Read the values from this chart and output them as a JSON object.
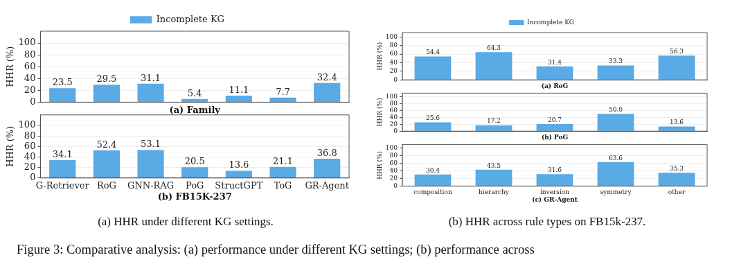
{
  "chart_data": [
    {
      "type": "bar",
      "xlabel": "(a) Family",
      "ylabel": "HHR (%)",
      "categories": [
        null,
        null,
        null,
        null,
        null,
        null,
        null
      ],
      "series": [
        {
          "name": "Incomplete KG",
          "color": "#5aaae6",
          "values": [
            23.5,
            29.5,
            31.1,
            5.4,
            11.1,
            7.7,
            32.4
          ],
          "value_labels": [
            "23.5",
            "29.5",
            "31.1",
            "5.4",
            "11.1",
            "7.7",
            "32.4"
          ]
        }
      ],
      "ylim": [
        0,
        120
      ],
      "yticks": [
        0,
        20,
        40,
        60,
        80,
        100
      ],
      "grid": "y",
      "legend": "top",
      "tick_labels": "y"
    },
    {
      "type": "bar",
      "xlabel": "(b) FB15K-237",
      "ylabel": "HHR (%)",
      "categories": [
        "G-Retriever",
        "RoG",
        "GNN-RAG",
        "PoG",
        "StructGPT",
        "ToG",
        "GR-Agent"
      ],
      "series": [
        {
          "color": "#5aaae6",
          "values": [
            34.1,
            52.4,
            53.1,
            20.5,
            13.6,
            21.1,
            36.8
          ],
          "value_labels": [
            "34.1",
            "52.4",
            "53.1",
            "20.5",
            "13.6",
            "21.1",
            "36.8"
          ]
        }
      ],
      "ylim": [
        0,
        120
      ],
      "yticks": [
        0,
        20,
        40,
        60,
        80,
        100
      ],
      "grid": "y",
      "annotations": [
        "(a) HHR under different KG settings."
      ]
    },
    {
      "type": "bar",
      "xlabel": "(a) RoG",
      "ylabel": "HHR (%)",
      "categories": [
        null,
        null,
        null,
        null,
        null
      ],
      "series": [
        {
          "name": "Incomplete KG",
          "color": "#5aaae6",
          "values": [
            54.4,
            64.3,
            31.4,
            33.3,
            56.3
          ],
          "value_labels": [
            "54.4",
            "64.3",
            "31.4",
            "33.3",
            "56.3"
          ]
        }
      ],
      "ylim": [
        0,
        110
      ],
      "yticks": [
        0,
        20,
        40,
        60,
        80,
        100
      ],
      "grid": "y",
      "legend": "top",
      "tick_labels": "y"
    },
    {
      "type": "bar",
      "xlabel": "(b) PoG",
      "ylabel": "HHR (%)",
      "categories": [
        null,
        null,
        null,
        null,
        null
      ],
      "series": [
        {
          "color": "#5aaae6",
          "values": [
            25.6,
            17.2,
            20.7,
            50,
            13.6
          ],
          "value_labels": [
            "25.6",
            "17.2",
            "20.7",
            "50.0",
            "13.6"
          ]
        }
      ],
      "ylim": [
        0,
        110
      ],
      "yticks": [
        0,
        20,
        40,
        60,
        80,
        100
      ],
      "grid": "y",
      "tick_labels": "y"
    },
    {
      "type": "bar",
      "xlabel": "(c) GR-Agent",
      "ylabel": "HHR (%)",
      "categories": [
        "composition",
        "hierarchy",
        "inversion",
        "symmetry",
        "other"
      ],
      "series": [
        {
          "color": "#5aaae6",
          "values": [
            30.4,
            43.5,
            31.6,
            63.6,
            35.3
          ],
          "value_labels": [
            "30.4",
            "43.5",
            "31.6",
            "63.6",
            "35.3"
          ]
        }
      ],
      "ylim": [
        0,
        110
      ],
      "yticks": [
        0,
        20,
        40,
        60,
        80,
        100
      ],
      "grid": "y",
      "annotations": [
        "(b) HHR across rule types on FB15k-237.",
        "Figure 3: Comparative analysis: (a) performance under different KG settings; (b) performance across"
      ]
    }
  ]
}
